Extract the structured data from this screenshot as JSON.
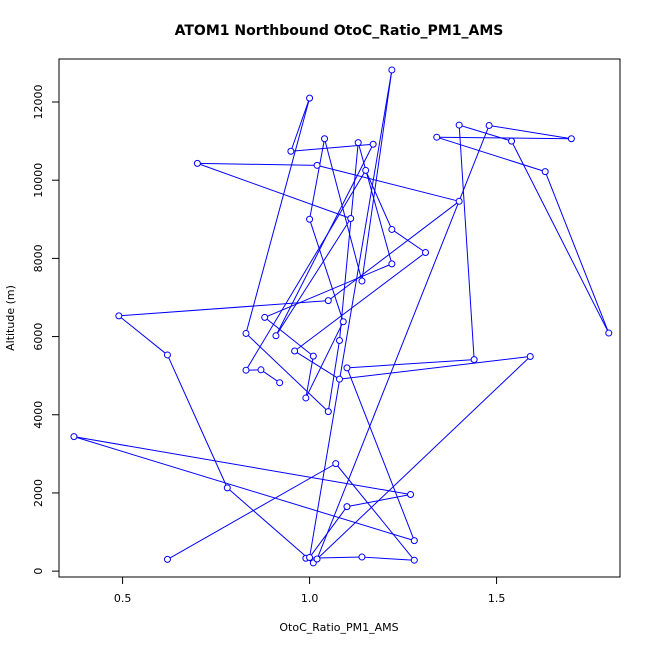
{
  "chart_data": {
    "type": "line",
    "title": "ATOM1 Northbound OtoC_Ratio_PM1_AMS",
    "xlabel": "OtoC_Ratio_PM1_AMS",
    "ylabel": "Altitude (m)",
    "xlim": [
      0.33,
      1.83
    ],
    "ylim": [
      -150,
      13100
    ],
    "x_ticks": [
      0.5,
      1.0,
      1.5
    ],
    "x_tick_labels": [
      "0.5",
      "1.0",
      "1.5"
    ],
    "y_ticks": [
      0,
      2000,
      4000,
      6000,
      8000,
      10000,
      12000
    ],
    "y_tick_labels": [
      "0",
      "2000",
      "4000",
      "6000",
      "8000",
      "10000",
      "12000"
    ],
    "grid": false,
    "legend": "none",
    "color": "#0000ff",
    "marker": "open-circle",
    "series": [
      {
        "points": [
          [
            0.62,
            300
          ],
          [
            1.07,
            2750
          ],
          [
            1.28,
            280
          ],
          [
            1.14,
            360
          ],
          [
            0.99,
            330
          ],
          [
            1.01,
            210
          ],
          [
            0.78,
            2130
          ],
          [
            0.62,
            5530
          ],
          [
            0.49,
            6530
          ],
          [
            1.05,
            6920
          ],
          [
            1.4,
            9460
          ],
          [
            1.02,
            10380
          ],
          [
            0.7,
            10430
          ],
          [
            1.11,
            9020
          ],
          [
            0.91,
            6020
          ],
          [
            1.17,
            10920
          ],
          [
            0.95,
            10740
          ],
          [
            1.0,
            12100
          ],
          [
            0.83,
            6080
          ],
          [
            1.05,
            4080
          ],
          [
            1.08,
            5900
          ],
          [
            1.13,
            10960
          ],
          [
            1.22,
            7860
          ],
          [
            0.88,
            6490
          ],
          [
            1.01,
            5500
          ],
          [
            0.99,
            4430
          ],
          [
            1.09,
            6380
          ],
          [
            1.0,
            9000
          ],
          [
            1.04,
            11060
          ],
          [
            1.14,
            7420
          ],
          [
            1.22,
            12820
          ],
          [
            1.0,
            350
          ],
          [
            1.1,
            1650
          ],
          [
            1.27,
            1960
          ],
          [
            0.37,
            3440
          ],
          [
            1.28,
            780
          ],
          [
            1.1,
            5200
          ],
          [
            1.44,
            5410
          ],
          [
            1.4,
            11410
          ],
          [
            1.54,
            11000
          ],
          [
            1.8,
            6090
          ],
          [
            1.63,
            10220
          ],
          [
            1.34,
            11100
          ],
          [
            1.7,
            11060
          ],
          [
            1.48,
            11400
          ],
          [
            1.02,
            310
          ],
          [
            1.59,
            5490
          ],
          [
            1.08,
            4910
          ],
          [
            0.96,
            5630
          ],
          [
            1.31,
            8150
          ],
          [
            1.22,
            8740
          ],
          [
            1.15,
            10250
          ],
          [
            0.83,
            5140
          ],
          [
            0.87,
            5150
          ],
          [
            0.92,
            4820
          ]
        ]
      }
    ]
  }
}
